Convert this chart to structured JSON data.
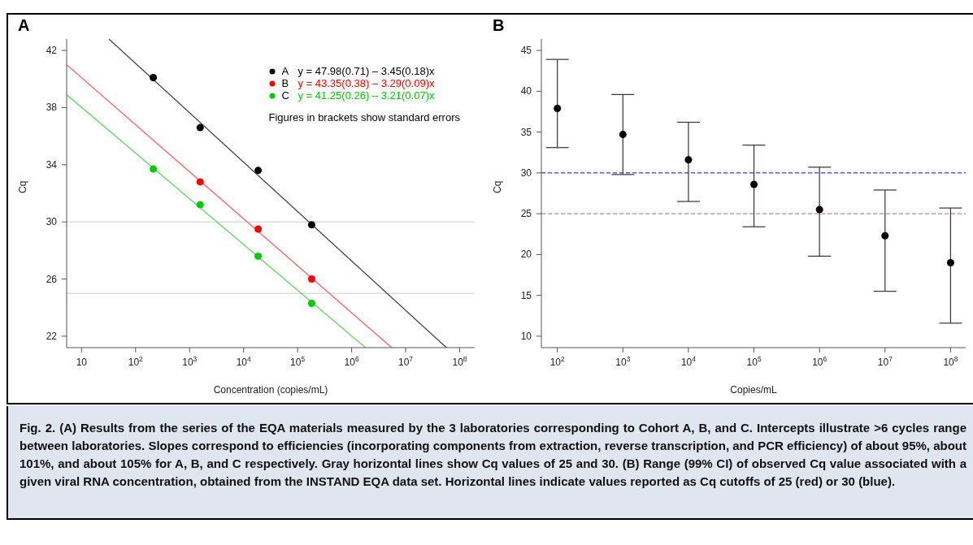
{
  "chart_data": [
    {
      "type": "scatter",
      "title": "A",
      "xlabel": "Concentration (copies/mL)",
      "ylabel": "Cq",
      "log": "x",
      "xlim": [
        5.3,
        190000000
      ],
      "ylim": [
        21.2,
        42.8
      ],
      "xticks": [
        10,
        {
          "value": 100,
          "label": "10$^{2}$"
        },
        {
          "value": 1000,
          "label": "10$^{3}$"
        },
        {
          "value": 10000,
          "label": "10$^{4}$"
        },
        {
          "value": 100000,
          "label": "10$^{5}$"
        },
        {
          "value": 1000000,
          "label": "10$^{6}$"
        },
        {
          "value": 10000000,
          "label": "10$^{7}$"
        },
        {
          "value": 100000000,
          "label": "10$^{8}$"
        }
      ],
      "yticks": [
        22,
        26,
        30,
        34,
        38,
        42
      ],
      "legend": "top right",
      "marker": "circle",
      "line_style": "solid",
      "series": [
        {
          "type": "line",
          "marker": "none",
          "color": "#444444",
          "x": [
            32,
            57000000
          ],
          "values": [
            42.8,
            21.2
          ]
        },
        {
          "type": "line",
          "marker": "none",
          "color": "#ff6060",
          "x": [
            5.3,
            5500000
          ],
          "values": [
            41.0,
            21.2
          ]
        },
        {
          "type": "line",
          "marker": "none",
          "color": "#60d860",
          "x": [
            5.3,
            1800000
          ],
          "values": [
            38.9,
            21.2
          ]
        },
        {
          "name": "A",
          "color": "#000000",
          "x": [
            213,
            1570,
            18600,
            182000
          ],
          "values": [
            40.1,
            36.6,
            33.6,
            29.8
          ]
        },
        {
          "name": "B",
          "color": "#ff0000",
          "x": [
            1570,
            18600,
            182000
          ],
          "values": [
            32.8,
            29.5,
            26.0
          ]
        },
        {
          "name": "C",
          "color": "#00cc00",
          "x": [
            213,
            1570,
            18600,
            182000
          ],
          "values": [
            33.7,
            31.2,
            27.6,
            24.3
          ]
        }
      ],
      "ref_lines": [
        {
          "axis": "y",
          "value": 30,
          "color": "#cccccc",
          "line_style": "solid"
        },
        {
          "axis": "y",
          "value": 25,
          "color": "#cccccc",
          "line_style": "solid"
        }
      ],
      "annotations": [
        "y = 47.98(0.71) – 3.45(0.18)x",
        "y = 43.35(0.38) – 3.29(0.09)x",
        "y = 41.25(0.26) – 3.21(0.07)x",
        "Figures in brackets show standard errors"
      ]
    },
    {
      "type": "scatter",
      "title": "B",
      "xlabel": "Copies/mL",
      "ylabel": "Cq",
      "log": "x",
      "xlim": [
        57,
        170000000
      ],
      "ylim": [
        8.6,
        46.4
      ],
      "xticks": [
        {
          "value": 100,
          "label": "10$^{2}$"
        },
        {
          "value": 1000,
          "label": "10$^{3}$"
        },
        {
          "value": 10000,
          "label": "10$^{4}$"
        },
        {
          "value": 100000,
          "label": "10$^{5}$"
        },
        {
          "value": 1000000,
          "label": "10$^{6}$"
        },
        {
          "value": 10000000,
          "label": "10$^{7}$"
        },
        {
          "value": 100000000,
          "label": "10$^{8}$"
        }
      ],
      "yticks": [
        10,
        15,
        20,
        25,
        30,
        35,
        40,
        45
      ],
      "marker": "circle",
      "x": [
        100,
        1000,
        10000,
        100000,
        1000000,
        10000000,
        100000000
      ],
      "series": [
        {
          "color": "#000000",
          "values": [
            37.9,
            34.7,
            31.6,
            28.6,
            25.5,
            22.3,
            19.0
          ],
          "errors": [
            [
              33.1,
              43.9
            ],
            [
              29.8,
              39.6
            ],
            [
              26.5,
              36.2
            ],
            [
              23.4,
              33.4
            ],
            [
              19.8,
              30.7
            ],
            [
              15.5,
              27.9
            ],
            [
              11.6,
              25.7
            ]
          ]
        }
      ],
      "ref_lines": [
        {
          "axis": "y",
          "value": 30,
          "color": "#0000ff",
          "line_style": "dashed"
        },
        {
          "axis": "y",
          "value": 25,
          "color": "#d06050",
          "line_style": "dashed"
        }
      ],
      "annotations": [
        "Fig. 2. (A) Results from the series of the EQA materials measured by the 3 laboratories corresponding to Cohort A, B, and C. Intercepts illustrate >6 cycles range between laboratories. Slopes correspond to efficiencies (incorporating components from extraction, reverse transcription, and PCR efficiency) of about 95%, about 101%, and about 105% for A, B, and C respectively. Gray horizontal lines show Cq values of 25 and 30. (B) Range (99% CI) of observed Cq value associated with a given viral RNA concentration, obtained from the INSTAND EQA data set. Horizontal lines indicate values reported as Cq cutoffs of 25 (red) or 30 (blue)."
      ]
    }
  ]
}
